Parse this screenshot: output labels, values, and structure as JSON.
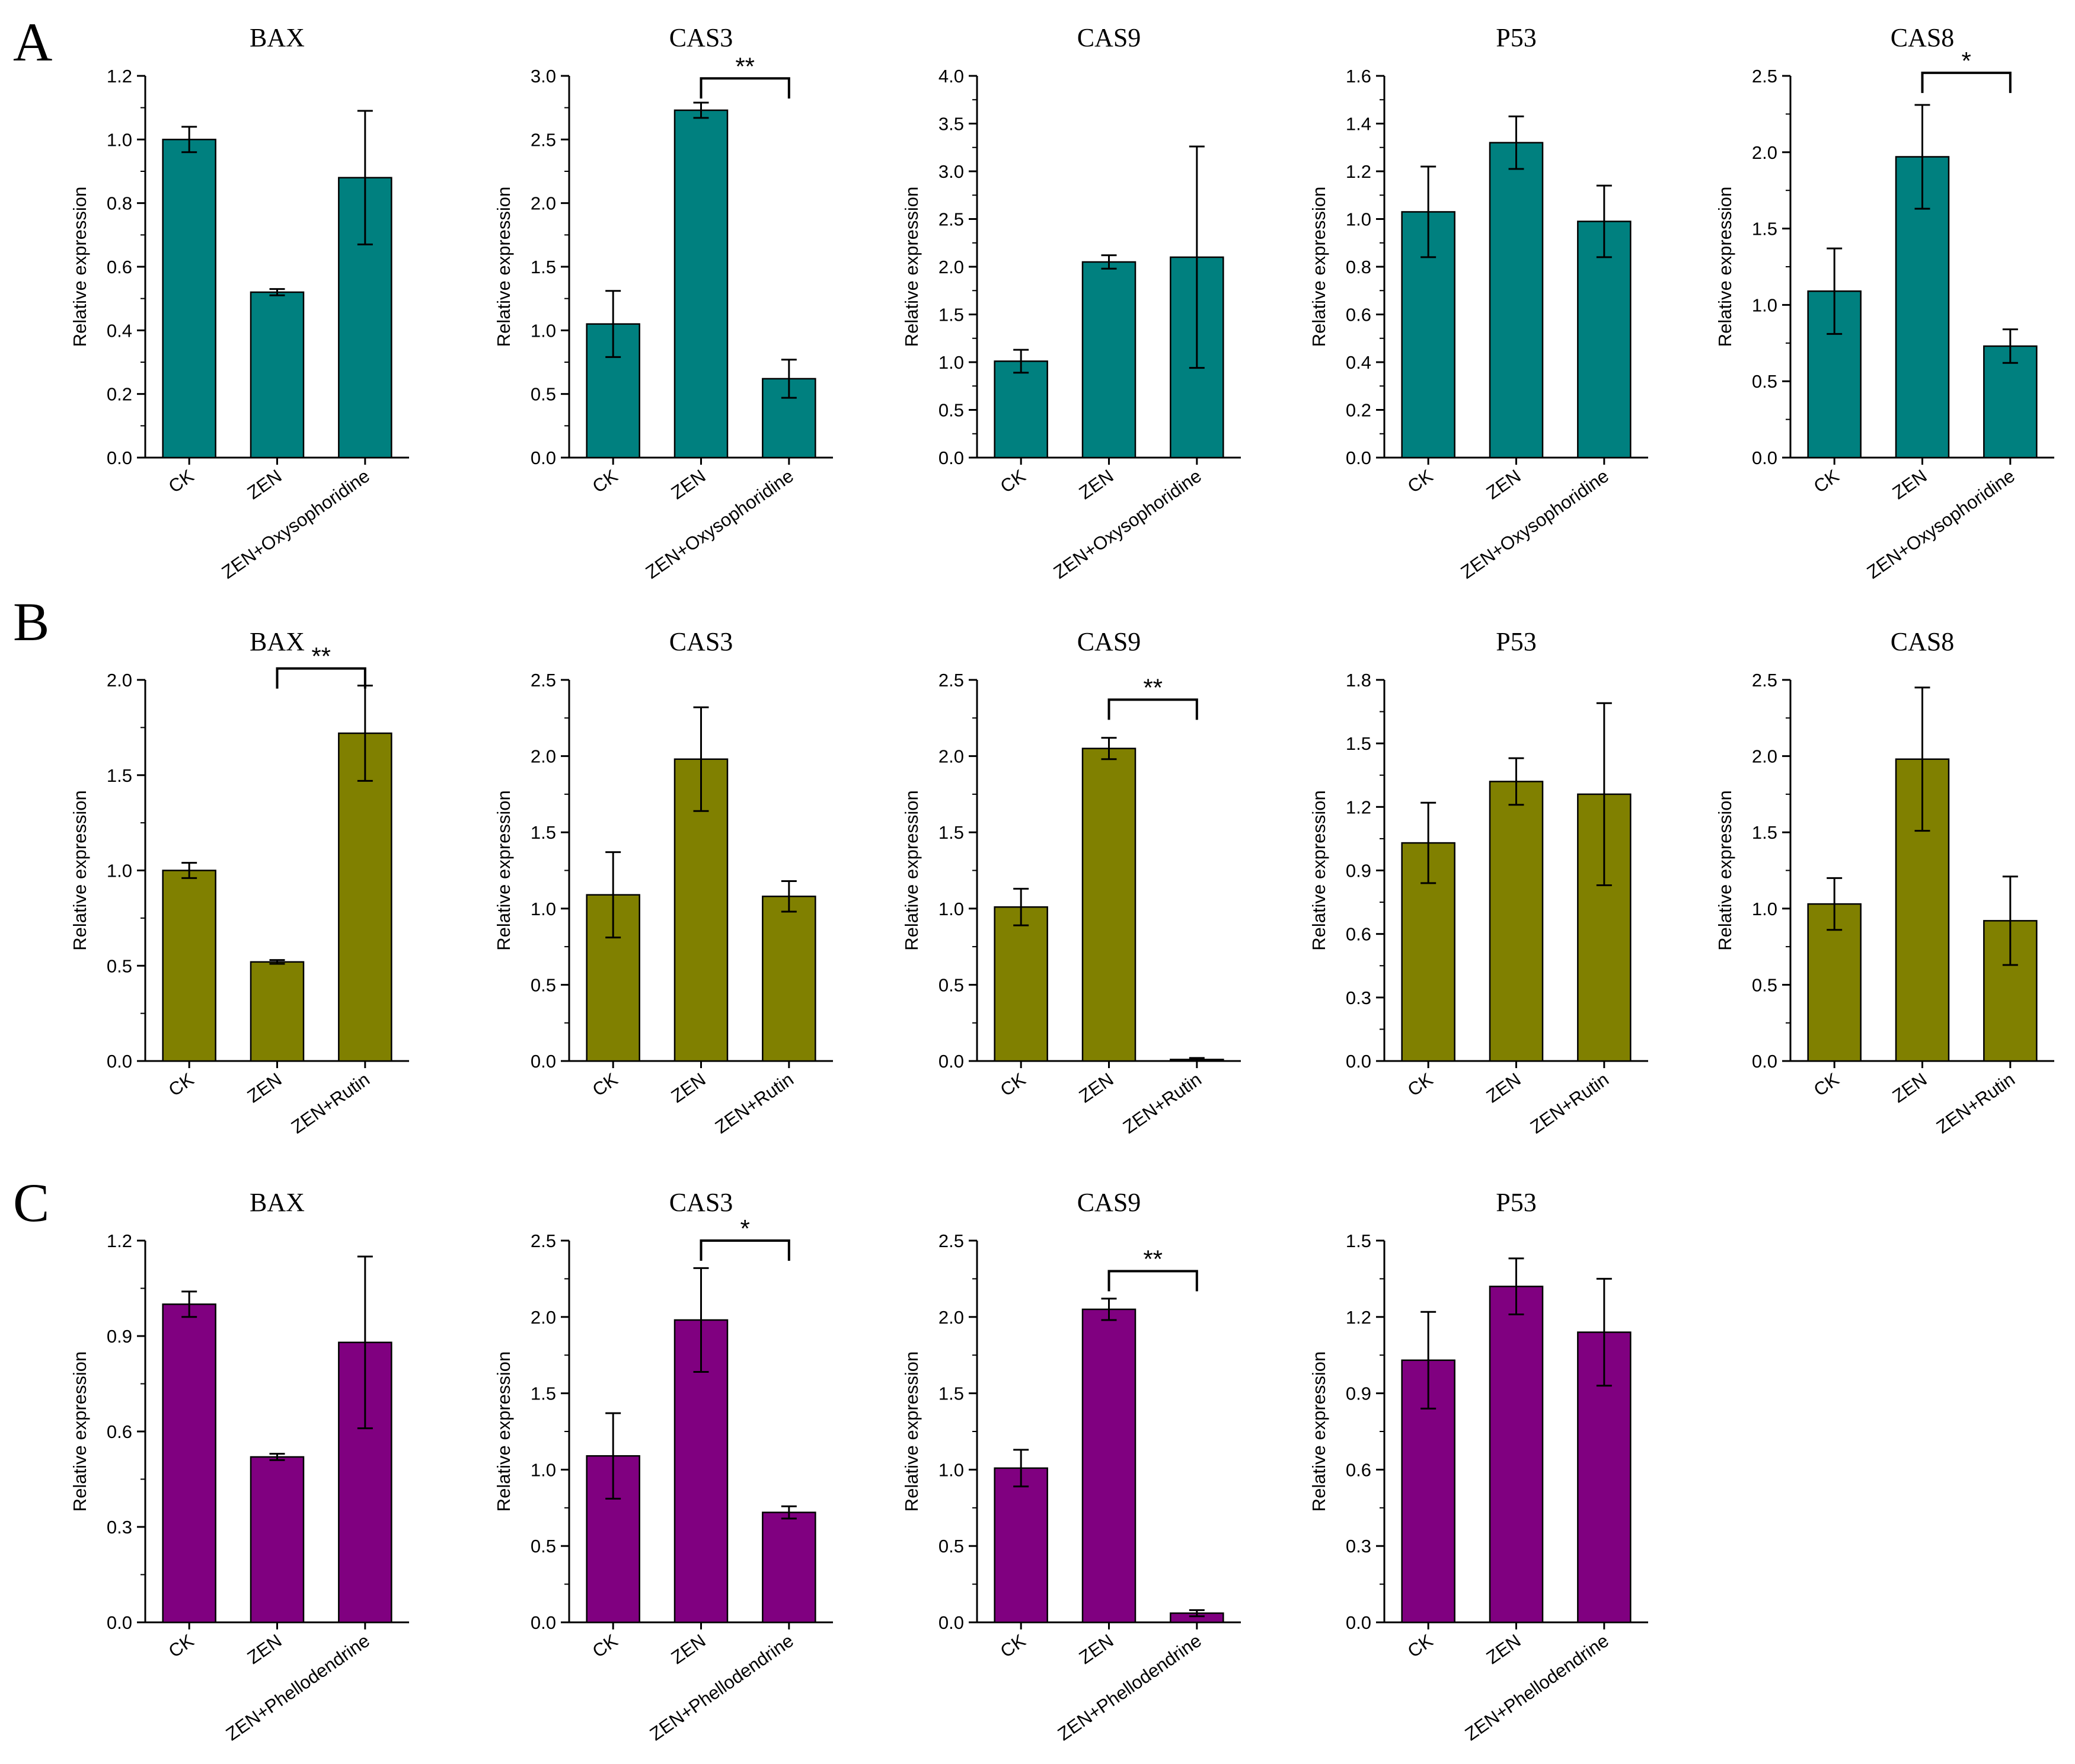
{
  "figure": {
    "panels": [
      {
        "letter": "A",
        "color": "#00807f"
      },
      {
        "letter": "B",
        "color": "#808000"
      },
      {
        "letter": "C",
        "color": "#800080"
      }
    ],
    "ylabel": "Relative expression"
  },
  "chart_data": [
    {
      "panel": "A",
      "type": "bar",
      "title": "BAX",
      "ylabel": "Relative expression",
      "categories": [
        "CK",
        "ZEN",
        "ZEN+Oxysophoridine"
      ],
      "values": [
        1.0,
        0.52,
        0.88
      ],
      "errors": [
        0.04,
        0.01,
        0.21
      ],
      "ylim": [
        0,
        1.2
      ],
      "yticks": [
        0.0,
        0.2,
        0.4,
        0.6,
        0.8,
        1.0,
        1.2
      ],
      "tick_labels": [
        "0.0",
        "0.2",
        "0.4",
        "0.6",
        "0.8",
        "1.0",
        "1.2"
      ],
      "significance": null
    },
    {
      "panel": "A",
      "type": "bar",
      "title": "CAS3",
      "ylabel": "Relative expression",
      "categories": [
        "CK",
        "ZEN",
        "ZEN+Oxysophoridine"
      ],
      "values": [
        1.05,
        2.73,
        0.62
      ],
      "errors": [
        0.26,
        0.06,
        0.15
      ],
      "ylim": [
        0,
        3.0
      ],
      "yticks": [
        0.0,
        0.5,
        1.0,
        1.5,
        2.0,
        2.5,
        3.0
      ],
      "tick_labels": [
        "0.0",
        "0.5",
        "1.0",
        "1.5",
        "2.0",
        "2.5",
        "3.0"
      ],
      "significance": {
        "from": 1,
        "to": 2,
        "label": "**",
        "level": 2.98
      }
    },
    {
      "panel": "A",
      "type": "bar",
      "title": "CAS9",
      "ylabel": "Relative expression",
      "categories": [
        "CK",
        "ZEN",
        "ZEN+Oxysophoridine"
      ],
      "values": [
        1.01,
        2.05,
        2.1
      ],
      "errors": [
        0.12,
        0.07,
        1.16
      ],
      "ylim": [
        0,
        4.0
      ],
      "yticks": [
        0.0,
        0.5,
        1.0,
        1.5,
        2.0,
        2.5,
        3.0,
        3.5,
        4.0
      ],
      "tick_labels": [
        "0.0",
        "0.5",
        "1.0",
        "1.5",
        "2.0",
        "2.5",
        "3.0",
        "3.5",
        "4.0"
      ],
      "significance": null
    },
    {
      "panel": "A",
      "type": "bar",
      "title": "P53",
      "ylabel": "Relative expression",
      "categories": [
        "CK",
        "ZEN",
        "ZEN+Oxysophoridine"
      ],
      "values": [
        1.03,
        1.32,
        0.99
      ],
      "errors": [
        0.19,
        0.11,
        0.15
      ],
      "ylim": [
        0,
        1.6
      ],
      "yticks": [
        0.0,
        0.2,
        0.4,
        0.6,
        0.8,
        1.0,
        1.2,
        1.4,
        1.6
      ],
      "tick_labels": [
        "0.0",
        "0.2",
        "0.4",
        "0.6",
        "0.8",
        "1.0",
        "1.2",
        "1.4",
        "1.6"
      ],
      "significance": null
    },
    {
      "panel": "A",
      "type": "bar",
      "title": "CAS8",
      "ylabel": "Relative expression",
      "categories": [
        "CK",
        "ZEN",
        "ZEN+Oxysophoridine"
      ],
      "values": [
        1.09,
        1.97,
        0.73
      ],
      "errors": [
        0.28,
        0.34,
        0.11
      ],
      "ylim": [
        0,
        2.5
      ],
      "yticks": [
        0.0,
        0.5,
        1.0,
        1.5,
        2.0,
        2.5
      ],
      "tick_labels": [
        "0.0",
        "0.5",
        "1.0",
        "1.5",
        "2.0",
        "2.5"
      ],
      "significance": {
        "from": 1,
        "to": 2,
        "label": "*",
        "level": 2.52
      }
    },
    {
      "panel": "B",
      "type": "bar",
      "title": "BAX",
      "ylabel": "Relative expression",
      "categories": [
        "CK",
        "ZEN",
        "ZEN+Rutin"
      ],
      "values": [
        1.0,
        0.52,
        1.72
      ],
      "errors": [
        0.04,
        0.01,
        0.25
      ],
      "ylim": [
        0,
        2.0
      ],
      "yticks": [
        0.0,
        0.5,
        1.0,
        1.5,
        2.0
      ],
      "tick_labels": [
        "0.0",
        "0.5",
        "1.0",
        "1.5",
        "2.0"
      ],
      "significance": {
        "from": 1,
        "to": 2,
        "label": "**",
        "level": 2.06
      }
    },
    {
      "panel": "B",
      "type": "bar",
      "title": "CAS3",
      "ylabel": "Relative expression",
      "categories": [
        "CK",
        "ZEN",
        "ZEN+Rutin"
      ],
      "values": [
        1.09,
        1.98,
        1.08
      ],
      "errors": [
        0.28,
        0.34,
        0.1
      ],
      "ylim": [
        0,
        2.5
      ],
      "yticks": [
        0.0,
        0.5,
        1.0,
        1.5,
        2.0,
        2.5
      ],
      "tick_labels": [
        "0.0",
        "0.5",
        "1.0",
        "1.5",
        "2.0",
        "2.5"
      ],
      "significance": null
    },
    {
      "panel": "B",
      "type": "bar",
      "title": "CAS9",
      "ylabel": "Relative expression",
      "categories": [
        "CK",
        "ZEN",
        "ZEN+Rutin"
      ],
      "values": [
        1.01,
        2.05,
        0.01
      ],
      "errors": [
        0.12,
        0.07,
        0.01
      ],
      "ylim": [
        0,
        2.5
      ],
      "yticks": [
        0.0,
        0.5,
        1.0,
        1.5,
        2.0,
        2.5
      ],
      "tick_labels": [
        "0.0",
        "0.5",
        "1.0",
        "1.5",
        "2.0",
        "2.5"
      ],
      "significance": {
        "from": 1,
        "to": 2,
        "label": "**",
        "level": 2.37
      }
    },
    {
      "panel": "B",
      "type": "bar",
      "title": "P53",
      "ylabel": "Relative expression",
      "categories": [
        "CK",
        "ZEN",
        "ZEN+Rutin"
      ],
      "values": [
        1.03,
        1.32,
        1.26
      ],
      "errors": [
        0.19,
        0.11,
        0.43
      ],
      "ylim": [
        0,
        1.8
      ],
      "yticks": [
        0.0,
        0.3,
        0.6,
        0.9,
        1.2,
        1.5,
        1.8
      ],
      "tick_labels": [
        "0.0",
        "0.3",
        "0.6",
        "0.9",
        "1.2",
        "1.5",
        "1.8"
      ],
      "significance": null
    },
    {
      "panel": "B",
      "type": "bar",
      "title": "CAS8",
      "ylabel": "Relative expression",
      "categories": [
        "CK",
        "ZEN",
        "ZEN+Rutin"
      ],
      "values": [
        1.03,
        1.98,
        0.92
      ],
      "errors": [
        0.17,
        0.47,
        0.29
      ],
      "ylim": [
        0,
        2.5
      ],
      "yticks": [
        0.0,
        0.5,
        1.0,
        1.5,
        2.0,
        2.5
      ],
      "tick_labels": [
        "0.0",
        "0.5",
        "1.0",
        "1.5",
        "2.0",
        "2.5"
      ],
      "significance": null
    },
    {
      "panel": "C",
      "type": "bar",
      "title": "BAX",
      "ylabel": "Relative expression",
      "categories": [
        "CK",
        "ZEN",
        "ZEN+Phellodendrine"
      ],
      "values": [
        1.0,
        0.52,
        0.88
      ],
      "errors": [
        0.04,
        0.01,
        0.27
      ],
      "ylim": [
        0,
        1.2
      ],
      "yticks": [
        0.0,
        0.3,
        0.6,
        0.9,
        1.2
      ],
      "tick_labels": [
        "0.0",
        "0.3",
        "0.6",
        "0.9",
        "1.2"
      ],
      "significance": null
    },
    {
      "panel": "C",
      "type": "bar",
      "title": "CAS3",
      "ylabel": "Relative expression",
      "categories": [
        "CK",
        "ZEN",
        "ZEN+Phellodendrine"
      ],
      "values": [
        1.09,
        1.98,
        0.72
      ],
      "errors": [
        0.28,
        0.34,
        0.04
      ],
      "ylim": [
        0,
        2.5
      ],
      "yticks": [
        0.0,
        0.5,
        1.0,
        1.5,
        2.0,
        2.5
      ],
      "tick_labels": [
        "0.0",
        "0.5",
        "1.0",
        "1.5",
        "2.0",
        "2.5"
      ],
      "significance": {
        "from": 1,
        "to": 2,
        "label": "*",
        "level": 2.5
      }
    },
    {
      "panel": "C",
      "type": "bar",
      "title": "CAS9",
      "ylabel": "Relative expression",
      "categories": [
        "CK",
        "ZEN",
        "ZEN+Phellodendrine"
      ],
      "values": [
        1.01,
        2.05,
        0.06
      ],
      "errors": [
        0.12,
        0.07,
        0.02
      ],
      "ylim": [
        0,
        2.5
      ],
      "yticks": [
        0.0,
        0.5,
        1.0,
        1.5,
        2.0,
        2.5
      ],
      "tick_labels": [
        "0.0",
        "0.5",
        "1.0",
        "1.5",
        "2.0",
        "2.5"
      ],
      "significance": {
        "from": 1,
        "to": 2,
        "label": "**",
        "level": 2.3
      }
    },
    {
      "panel": "C",
      "type": "bar",
      "title": "P53",
      "ylabel": "Relative expression",
      "categories": [
        "CK",
        "ZEN",
        "ZEN+Phellodendrine"
      ],
      "values": [
        1.03,
        1.32,
        1.14
      ],
      "errors": [
        0.19,
        0.11,
        0.21
      ],
      "ylim": [
        0,
        1.5
      ],
      "yticks": [
        0.0,
        0.3,
        0.6,
        0.9,
        1.2,
        1.5
      ],
      "tick_labels": [
        "0.0",
        "0.3",
        "0.6",
        "0.9",
        "1.2",
        "1.5"
      ],
      "significance": null
    }
  ]
}
